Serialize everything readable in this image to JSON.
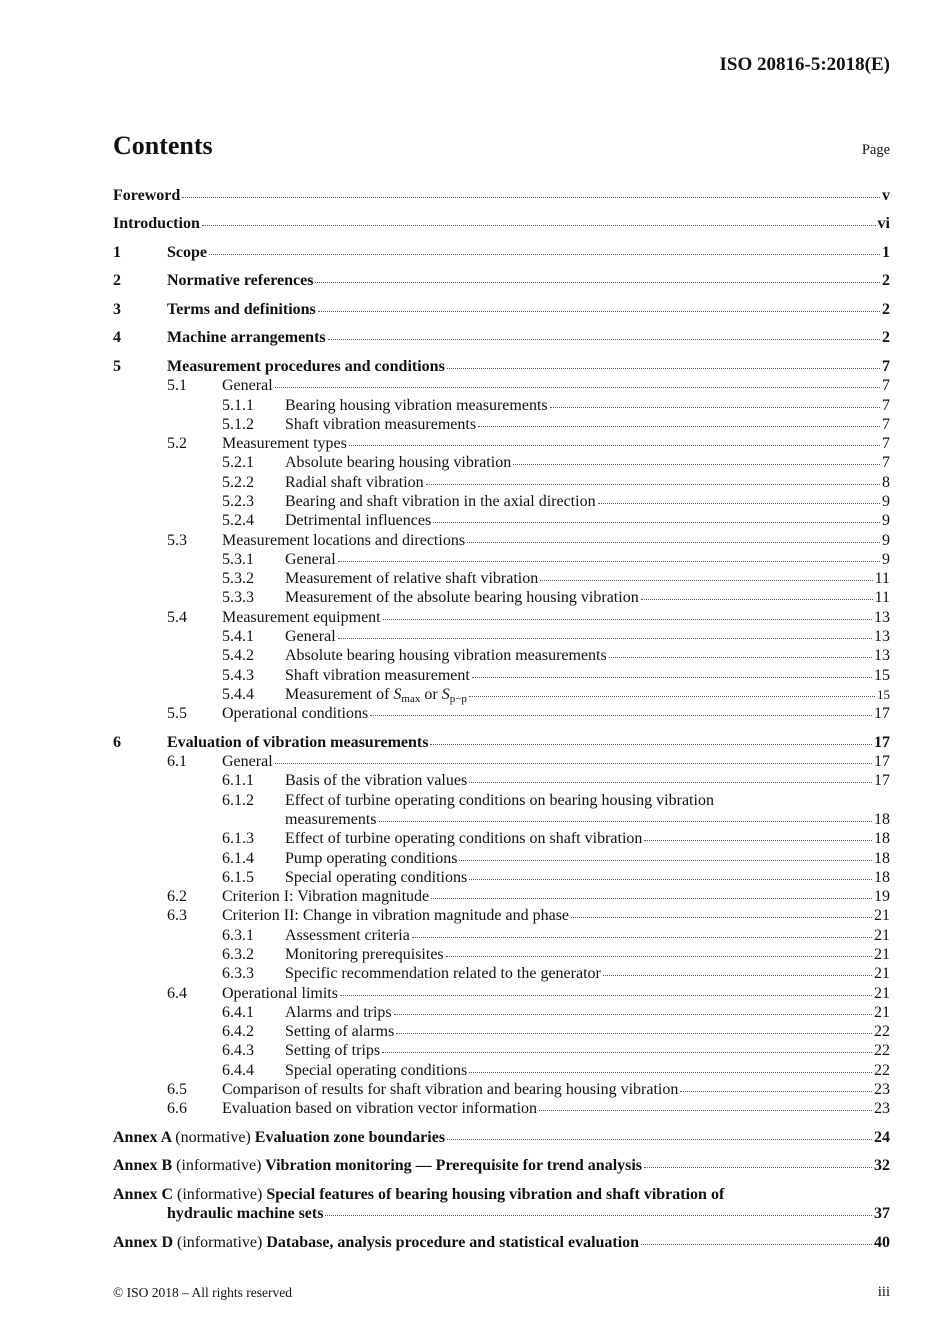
{
  "header": {
    "doc_id": "ISO 20816-5:2018(E)"
  },
  "contents": {
    "title": "Contents",
    "page_label": "Page"
  },
  "toc": [
    {
      "level": 0,
      "title": "Foreword",
      "page": "v"
    },
    {
      "level": 0,
      "title": "Introduction",
      "page": "vi"
    },
    {
      "level": 1,
      "num": "1",
      "title": "Scope",
      "page": "1"
    },
    {
      "level": 1,
      "num": "2",
      "title": "Normative references",
      "page": "2"
    },
    {
      "level": 1,
      "num": "3",
      "title": "Terms and definitions",
      "page": "2"
    },
    {
      "level": 1,
      "num": "4",
      "title": "Machine arrangements",
      "page": "2"
    },
    {
      "level": 1,
      "num": "5",
      "title": "Measurement procedures and conditions",
      "page": "7"
    },
    {
      "level": 2,
      "num": "5.1",
      "title": "General",
      "page": "7"
    },
    {
      "level": 3,
      "num": "5.1.1",
      "title": "Bearing housing vibration measurements",
      "page": "7"
    },
    {
      "level": 3,
      "num": "5.1.2",
      "title": "Shaft vibration measurements",
      "page": "7"
    },
    {
      "level": 2,
      "num": "5.2",
      "title": "Measurement types",
      "page": "7"
    },
    {
      "level": 3,
      "num": "5.2.1",
      "title": "Absolute bearing housing vibration",
      "page": "7"
    },
    {
      "level": 3,
      "num": "5.2.2",
      "title": "Radial shaft vibration",
      "page": "8"
    },
    {
      "level": 3,
      "num": "5.2.3",
      "title": "Bearing and shaft vibration in the axial direction",
      "page": "9"
    },
    {
      "level": 3,
      "num": "5.2.4",
      "title": "Detrimental influences",
      "page": "9"
    },
    {
      "level": 2,
      "num": "5.3",
      "title": "Measurement locations and directions",
      "page": "9"
    },
    {
      "level": 3,
      "num": "5.3.1",
      "title": "General",
      "page": "9"
    },
    {
      "level": 3,
      "num": "5.3.2",
      "title": "Measurement of relative shaft vibration",
      "page": "11"
    },
    {
      "level": 3,
      "num": "5.3.3",
      "title": "Measurement of the absolute bearing housing vibration",
      "page": "11"
    },
    {
      "level": 2,
      "num": "5.4",
      "title": "Measurement equipment",
      "page": "13"
    },
    {
      "level": 3,
      "num": "5.4.1",
      "title": "General",
      "page": "13"
    },
    {
      "level": 3,
      "num": "5.4.2",
      "title": "Absolute bearing housing vibration measurements",
      "page": "13"
    },
    {
      "level": 3,
      "num": "5.4.3",
      "title": "Shaft vibration measurement",
      "page": "15"
    },
    {
      "level": 3,
      "num": "5.4.4",
      "title_parts": [
        "Measurement of ",
        "S",
        "max",
        " or ",
        "S",
        "p−p"
      ],
      "page": "15",
      "small_page": true
    },
    {
      "level": 2,
      "num": "5.5",
      "title": "Operational conditions",
      "page": "17"
    },
    {
      "level": 1,
      "num": "6",
      "title": "Evaluation of vibration measurements",
      "page": "17"
    },
    {
      "level": 2,
      "num": "6.1",
      "title": "General",
      "page": "17"
    },
    {
      "level": 3,
      "num": "6.1.1",
      "title": "Basis of the vibration values",
      "page": "17"
    },
    {
      "level": 3,
      "num": "6.1.2",
      "title_lines": [
        "Effect of turbine operating conditions on bearing housing vibration",
        "measurements"
      ],
      "page": "18"
    },
    {
      "level": 3,
      "num": "6.1.3",
      "title": "Effect of turbine operating conditions on shaft vibration",
      "page": "18"
    },
    {
      "level": 3,
      "num": "6.1.4",
      "title": "Pump operating conditions",
      "page": "18"
    },
    {
      "level": 3,
      "num": "6.1.5",
      "title": "Special operating conditions",
      "page": "18"
    },
    {
      "level": 2,
      "num": "6.2",
      "title": "Criterion I: Vibration magnitude",
      "page": "19"
    },
    {
      "level": 2,
      "num": "6.3",
      "title": "Criterion II: Change in vibration magnitude and phase",
      "page": "21"
    },
    {
      "level": 3,
      "num": "6.3.1",
      "title": "Assessment criteria",
      "page": "21"
    },
    {
      "level": 3,
      "num": "6.3.2",
      "title": "Monitoring prerequisites",
      "page": "21"
    },
    {
      "level": 3,
      "num": "6.3.3",
      "title": "Specific recommendation related to the generator",
      "page": "21"
    },
    {
      "level": 2,
      "num": "6.4",
      "title": "Operational limits",
      "page": "21"
    },
    {
      "level": 3,
      "num": "6.4.1",
      "title": "Alarms and trips",
      "page": "21"
    },
    {
      "level": 3,
      "num": "6.4.2",
      "title": "Setting of alarms",
      "page": "22"
    },
    {
      "level": 3,
      "num": "6.4.3",
      "title": "Setting of trips",
      "page": "22"
    },
    {
      "level": 3,
      "num": "6.4.4",
      "title": "Special operating conditions",
      "page": "22"
    },
    {
      "level": 2,
      "num": "6.5",
      "title": "Comparison of results for shaft vibration and bearing housing vibration",
      "page": "23"
    },
    {
      "level": 2,
      "num": "6.6",
      "title": "Evaluation based on vibration vector information",
      "page": "23"
    },
    {
      "level": "annex",
      "label": "Annex A",
      "kind": "(normative)",
      "title_lines": [
        "Evaluation zone boundaries"
      ],
      "page": "24"
    },
    {
      "level": "annex",
      "label": "Annex B",
      "kind": "(informative)",
      "title_lines": [
        "Vibration monitoring — Prerequisite for trend analysis"
      ],
      "page": "32"
    },
    {
      "level": "annex",
      "label": "Annex C",
      "kind": "(informative)",
      "title_lines": [
        "Special features of bearing housing vibration and shaft vibration of",
        "hydraulic machine sets"
      ],
      "page": "37"
    },
    {
      "level": "annex",
      "label": "Annex D",
      "kind": "(informative)",
      "title_lines": [
        "Database, analysis procedure and statistical evaluation"
      ],
      "page": "40"
    }
  ],
  "footer": {
    "copyright": "© ISO 2018 – All rights reserved",
    "page_number": "iii"
  }
}
